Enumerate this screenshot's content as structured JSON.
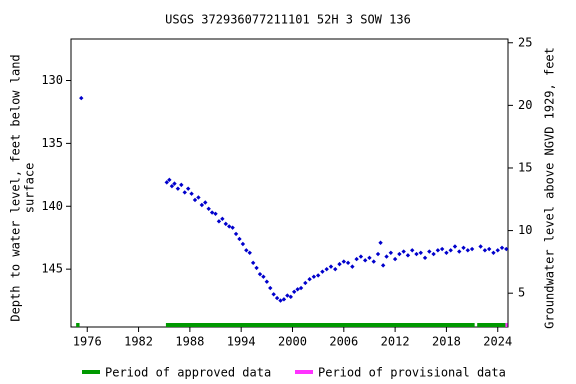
{
  "chart_data": {
    "type": "scatter",
    "title": "USGS 372936077211101 52H  3 SOW 136",
    "y_label": [
      "Depth to water level, feet below land",
      "surface"
    ],
    "y2_label": "Groundwater level above NGVD 1929, feet",
    "xlim": [
      1974.1,
      2025.2
    ],
    "xticks": [
      1976,
      1982,
      1988,
      1994,
      2000,
      2006,
      2012,
      2018,
      2024
    ],
    "ylim": [
      149.6,
      126.7
    ],
    "yticks": [
      130,
      135,
      140,
      145
    ],
    "y2lim": [
      2.3,
      25.3
    ],
    "y2ticks": [
      5,
      10,
      15,
      20,
      25
    ],
    "series": [
      {
        "name": "Depth to water level",
        "color": "#0000cc",
        "x": [
          1975.3,
          1985.3,
          1985.6,
          1985.9,
          1986.2,
          1986.6,
          1987.0,
          1987.4,
          1987.8,
          1988.2,
          1988.6,
          1989.0,
          1989.4,
          1989.8,
          1990.2,
          1990.6,
          1991.0,
          1991.4,
          1991.8,
          1992.2,
          1992.6,
          1993.0,
          1993.4,
          1993.8,
          1994.2,
          1994.6,
          1995.0,
          1995.4,
          1995.8,
          1996.2,
          1996.6,
          1997.0,
          1997.4,
          1997.8,
          1998.2,
          1998.6,
          1999.0,
          1999.4,
          1999.8,
          2000.2,
          2000.6,
          2001.0,
          2001.5,
          2002.0,
          2002.5,
          2003.0,
          2003.5,
          2004.0,
          2004.5,
          2005.0,
          2005.5,
          2006.0,
          2006.5,
          2007.0,
          2007.5,
          2008.0,
          2008.5,
          2009.0,
          2009.5,
          2010.0,
          2010.3,
          2010.6,
          2011.0,
          2011.5,
          2012.0,
          2012.5,
          2013.0,
          2013.5,
          2014.0,
          2014.5,
          2015.0,
          2015.5,
          2016.0,
          2016.5,
          2017.0,
          2017.5,
          2018.0,
          2018.5,
          2019.0,
          2019.5,
          2020.0,
          2020.5,
          2021.0,
          2022.0,
          2022.5,
          2023.0,
          2023.5,
          2024.0,
          2024.5,
          2025.0
        ],
        "values": [
          131.4,
          138.1,
          137.9,
          138.4,
          138.2,
          138.6,
          138.3,
          138.9,
          138.6,
          139.0,
          139.5,
          139.3,
          139.9,
          139.7,
          140.2,
          140.5,
          140.6,
          141.2,
          141.0,
          141.4,
          141.6,
          141.7,
          142.2,
          142.6,
          143.0,
          143.5,
          143.7,
          144.5,
          144.9,
          145.4,
          145.6,
          146.0,
          146.5,
          147.0,
          147.3,
          147.5,
          147.4,
          147.1,
          147.2,
          146.8,
          146.6,
          146.5,
          146.1,
          145.8,
          145.6,
          145.5,
          145.2,
          145.0,
          144.8,
          145.0,
          144.6,
          144.4,
          144.5,
          144.8,
          144.2,
          144.0,
          144.3,
          144.1,
          144.4,
          143.8,
          142.9,
          144.7,
          144.0,
          143.7,
          144.2,
          143.8,
          143.6,
          143.9,
          143.5,
          143.8,
          143.7,
          144.1,
          143.6,
          143.8,
          143.5,
          143.4,
          143.7,
          143.5,
          143.2,
          143.6,
          143.3,
          143.5,
          143.4,
          143.2,
          143.5,
          143.4,
          143.7,
          143.5,
          143.3,
          143.4
        ]
      }
    ],
    "periods": [
      {
        "name": "Period of approved data",
        "color": "#009900",
        "ranges": [
          [
            1974.7,
            1975.1
          ],
          [
            1985.2,
            2021.3
          ],
          [
            2021.6,
            2024.9
          ]
        ]
      },
      {
        "name": "Period of provisional data",
        "color": "#ff33ff",
        "ranges": [
          [
            2024.9,
            2025.1
          ]
        ]
      }
    ]
  }
}
